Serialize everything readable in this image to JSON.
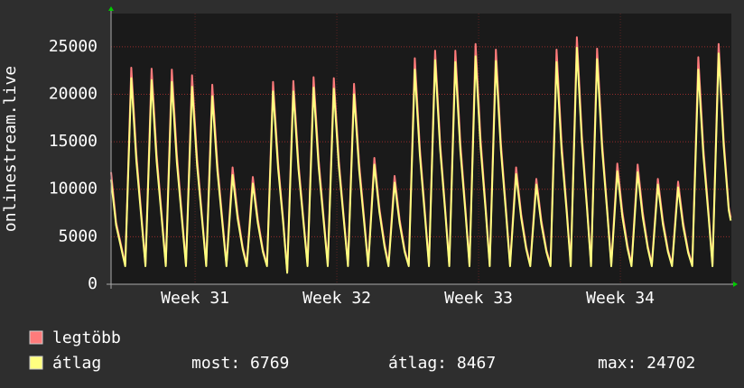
{
  "chart_data": {
    "type": "line",
    "y_label": "onlinestream.live",
    "x": [
      0,
      0.25,
      0.7,
      1,
      1.25,
      1.5,
      1.7,
      2,
      2.25,
      2.5,
      2.7,
      3,
      3.25,
      3.5,
      3.7,
      4,
      4.25,
      4.5,
      4.7,
      5,
      5.25,
      5.5,
      5.7,
      6,
      6.25,
      6.5,
      6.7,
      7,
      7.25,
      7.5,
      7.7,
      8,
      8.25,
      8.5,
      8.7,
      9,
      9.25,
      9.5,
      9.7,
      10,
      10.25,
      10.5,
      10.7,
      11,
      11.25,
      11.5,
      11.7,
      12,
      12.25,
      12.5,
      12.7,
      13,
      13.25,
      13.5,
      13.7,
      14,
      14.25,
      14.5,
      14.7,
      15,
      15.25,
      15.5,
      15.7,
      16,
      16.25,
      16.5,
      16.7,
      17,
      17.25,
      17.5,
      17.7,
      18,
      18.25,
      18.5,
      18.7,
      19,
      19.25,
      19.5,
      19.7,
      20,
      20.25,
      20.5,
      20.7,
      21,
      21.25,
      21.5,
      21.7,
      22,
      22.25,
      22.5,
      22.7,
      23,
      23.25,
      23.5,
      23.7,
      24,
      24.25,
      24.5,
      24.7,
      25,
      25.25,
      25.5,
      25.7,
      26,
      26.25,
      26.5,
      26.7,
      27,
      27.25,
      27.5,
      27.7,
      28,
      28.25,
      28.5,
      28.7,
      29,
      29.25,
      29.5,
      29.7,
      30,
      30.25,
      30.5,
      30.6
    ],
    "series": [
      {
        "name": "legtöbb",
        "color": "#ff7b7b",
        "values": [
          11800,
          6500,
          2100,
          22800,
          13700,
          7300,
          2100,
          22700,
          13600,
          7300,
          2100,
          22600,
          13600,
          7200,
          2100,
          22000,
          13200,
          7000,
          2100,
          21000,
          12600,
          6700,
          2100,
          12300,
          7400,
          3900,
          2100,
          11300,
          6800,
          3600,
          2100,
          21300,
          12800,
          6800,
          1300,
          21400,
          12800,
          6800,
          2100,
          21800,
          13100,
          7000,
          2100,
          21700,
          13000,
          6900,
          2100,
          21100,
          12700,
          6800,
          2100,
          13300,
          8000,
          4300,
          2100,
          11400,
          6800,
          3600,
          2100,
          23800,
          14300,
          7600,
          2100,
          24600,
          14800,
          7900,
          2100,
          24600,
          14800,
          7900,
          2100,
          25300,
          15200,
          8100,
          2100,
          24700,
          14800,
          7900,
          2100,
          12300,
          7400,
          3900,
          2100,
          11100,
          6700,
          3600,
          2100,
          24700,
          14800,
          7900,
          2100,
          26000,
          15600,
          8300,
          2100,
          24800,
          14900,
          7900,
          2100,
          12700,
          7600,
          4100,
          2100,
          12600,
          7600,
          4000,
          2100,
          11100,
          6700,
          3600,
          2100,
          10800,
          6500,
          3500,
          2100,
          23900,
          14300,
          7600,
          2100,
          25300,
          15200,
          8100,
          7000
        ]
      },
      {
        "name": "átlag",
        "color": "#ffff80",
        "values": [
          11000,
          6200,
          1900,
          21700,
          13000,
          6900,
          1900,
          21500,
          12900,
          6900,
          1900,
          21300,
          12800,
          6800,
          1900,
          20800,
          12500,
          6700,
          1900,
          19800,
          11900,
          6300,
          1900,
          11500,
          6900,
          3700,
          1900,
          10600,
          6400,
          3400,
          1900,
          20300,
          12200,
          6500,
          1200,
          20300,
          12200,
          6500,
          1900,
          20700,
          12400,
          6600,
          1900,
          20600,
          12400,
          6600,
          1900,
          20000,
          12000,
          6400,
          1900,
          12600,
          7600,
          4000,
          1900,
          10700,
          6400,
          3400,
          1900,
          22600,
          13600,
          7200,
          1900,
          23600,
          14200,
          7600,
          1900,
          23400,
          14000,
          7500,
          1900,
          24000,
          14400,
          7700,
          1900,
          23500,
          14100,
          7500,
          1900,
          11600,
          7000,
          3700,
          1900,
          10500,
          6300,
          3400,
          1900,
          23400,
          14000,
          7500,
          1900,
          24900,
          14900,
          8000,
          1900,
          23700,
          14200,
          7600,
          1900,
          11900,
          7100,
          3800,
          1900,
          11800,
          7100,
          3800,
          1900,
          10500,
          6300,
          3400,
          1900,
          10200,
          6100,
          3300,
          1900,
          22600,
          13600,
          7200,
          1900,
          24300,
          14600,
          7800,
          6700
        ]
      }
    ],
    "xlim": [
      0,
      30.63
    ],
    "xticks": [
      {
        "value": 4.15,
        "label": "Week 31"
      },
      {
        "value": 11.15,
        "label": "Week 32"
      },
      {
        "value": 18.15,
        "label": "Week 33"
      },
      {
        "value": 25.15,
        "label": "Week 34"
      }
    ],
    "ylim": [
      0,
      28500
    ],
    "yticks": [
      0,
      5000,
      10000,
      15000,
      20000,
      25000
    ],
    "grid": true,
    "stats": [
      "most: 6769",
      "átlag: 8467",
      "max: 24702"
    ]
  }
}
